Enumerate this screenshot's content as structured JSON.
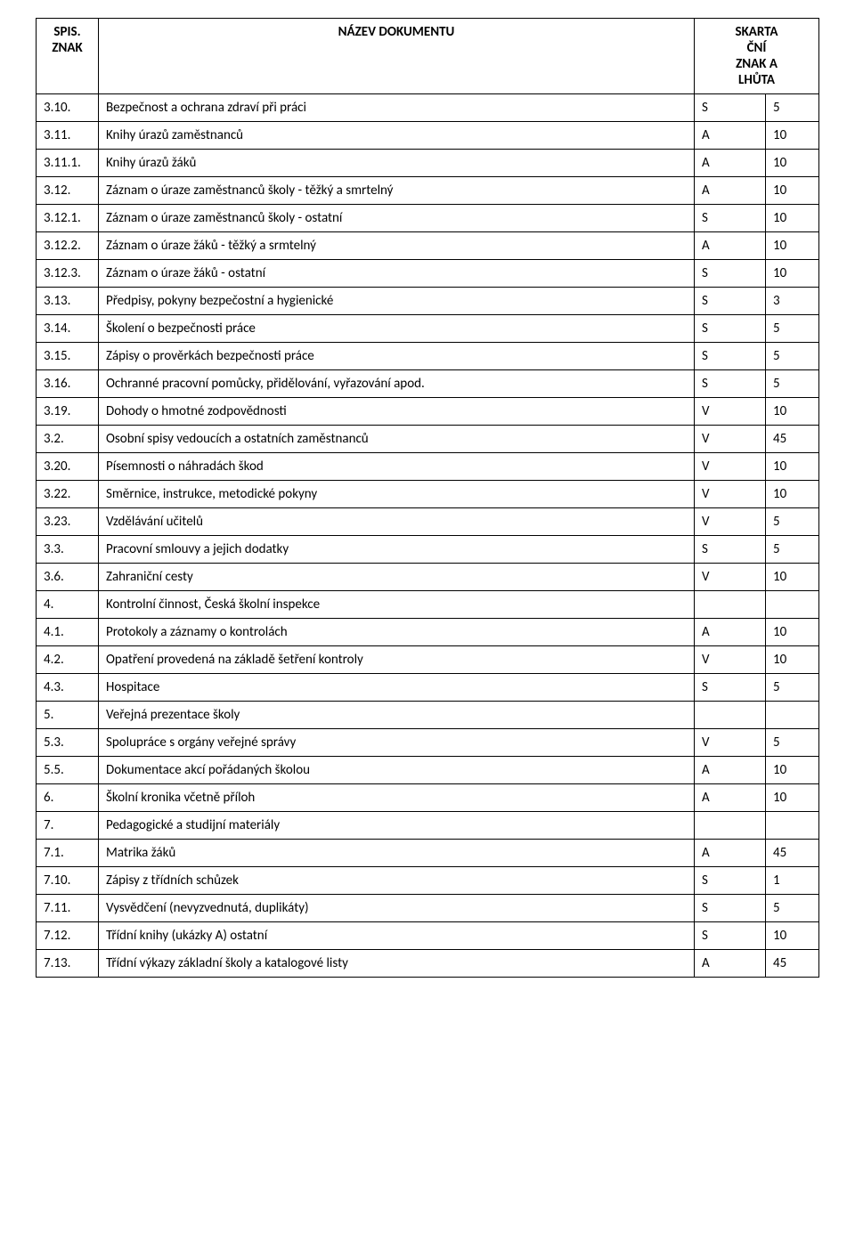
{
  "table": {
    "headers": {
      "col1": "SPIS.\nZNAK",
      "col2": "NÁZEV DOKUMENTU",
      "col3": "SKARTA\nČNÍ\nZNAK A\nLHŮTA"
    },
    "rows": [
      {
        "spis": "3.10.",
        "nazev": "Bezpečnost a ochrana zdraví při práci",
        "znak": "S",
        "lhuta": "5"
      },
      {
        "spis": "3.11.",
        "nazev": "Knihy úrazů zaměstnanců",
        "znak": "A",
        "lhuta": "10"
      },
      {
        "spis": "3.11.1.",
        "nazev": "Knihy úrazů žáků",
        "znak": "A",
        "lhuta": "10"
      },
      {
        "spis": "3.12.",
        "nazev": "Záznam o úraze zaměstnanců školy - těžký a smrtelný",
        "znak": "A",
        "lhuta": "10"
      },
      {
        "spis": "3.12.1.",
        "nazev": "Záznam o úraze zaměstnanců školy - ostatní",
        "znak": "S",
        "lhuta": "10"
      },
      {
        "spis": "3.12.2.",
        "nazev": "Záznam o úraze žáků - těžký a srmtelný",
        "znak": "A",
        "lhuta": "10"
      },
      {
        "spis": "3.12.3.",
        "nazev": "Záznam o úraze žáků - ostatní",
        "znak": "S",
        "lhuta": "10"
      },
      {
        "spis": "3.13.",
        "nazev": "Předpisy, pokyny bezpečostní a hygienické",
        "znak": "S",
        "lhuta": "3"
      },
      {
        "spis": "3.14.",
        "nazev": "Školení o bezpečnosti práce",
        "znak": "S",
        "lhuta": "5"
      },
      {
        "spis": "3.15.",
        "nazev": "Zápisy o prověrkách bezpečnosti práce",
        "znak": "S",
        "lhuta": "5"
      },
      {
        "spis": "3.16.",
        "nazev": "Ochranné pracovní pomůcky, přidělování, vyřazování apod.",
        "znak": "S",
        "lhuta": "5"
      },
      {
        "spis": "3.19.",
        "nazev": "Dohody o hmotné zodpovědnosti",
        "znak": "V",
        "lhuta": "10"
      },
      {
        "spis": "3.2.",
        "nazev": "Osobní spisy vedoucích a ostatních zaměstnanců",
        "znak": "V",
        "lhuta": "45"
      },
      {
        "spis": "3.20.",
        "nazev": "Písemnosti o náhradách škod",
        "znak": "V",
        "lhuta": "10"
      },
      {
        "spis": "3.22.",
        "nazev": "Směrnice, instrukce, metodické pokyny",
        "znak": "V",
        "lhuta": "10"
      },
      {
        "spis": "3.23.",
        "nazev": "Vzdělávání učitelů",
        "znak": "V",
        "lhuta": "5"
      },
      {
        "spis": "3.3.",
        "nazev": "Pracovní smlouvy a jejich dodatky",
        "znak": "S",
        "lhuta": "5"
      },
      {
        "spis": "3.6.",
        "nazev": "Zahraniční cesty",
        "znak": "V",
        "lhuta": "10"
      },
      {
        "spis": "4.",
        "nazev": "Kontrolní činnost, Česká školní inspekce",
        "znak": "",
        "lhuta": ""
      },
      {
        "spis": "4.1.",
        "nazev": "Protokoly a záznamy o kontrolách",
        "znak": "A",
        "lhuta": "10"
      },
      {
        "spis": "4.2.",
        "nazev": "Opatření provedená na základě šetření kontroly",
        "znak": "V",
        "lhuta": "10"
      },
      {
        "spis": "4.3.",
        "nazev": "Hospitace",
        "znak": "S",
        "lhuta": "5"
      },
      {
        "spis": "5.",
        "nazev": "Veřejná prezentace školy",
        "znak": "",
        "lhuta": ""
      },
      {
        "spis": "5.3.",
        "nazev": "Spolupráce s orgány veřejné správy",
        "znak": "V",
        "lhuta": "5"
      },
      {
        "spis": "5.5.",
        "nazev": "Dokumentace akcí pořádaných školou",
        "znak": "A",
        "lhuta": "10"
      },
      {
        "spis": "6.",
        "nazev": "Školní kronika včetně příloh",
        "znak": "A",
        "lhuta": "10"
      },
      {
        "spis": "7.",
        "nazev": "Pedagogické a studijní materiály",
        "znak": "",
        "lhuta": ""
      },
      {
        "spis": "7.1.",
        "nazev": "Matrika žáků",
        "znak": "A",
        "lhuta": "45"
      },
      {
        "spis": "7.10.",
        "nazev": "Zápisy z třídních schůzek",
        "znak": "S",
        "lhuta": "1"
      },
      {
        "spis": "7.11.",
        "nazev": "Vysvědčení (nevyzvednutá, duplikáty)",
        "znak": "S",
        "lhuta": "5"
      },
      {
        "spis": "7.12.",
        "nazev": "Třídní knihy (ukázky A) ostatní",
        "znak": "S",
        "lhuta": "10"
      },
      {
        "spis": "7.13.",
        "nazev": "Třídní výkazy základní školy a katalogové listy",
        "znak": "A",
        "lhuta": "45"
      }
    ]
  }
}
